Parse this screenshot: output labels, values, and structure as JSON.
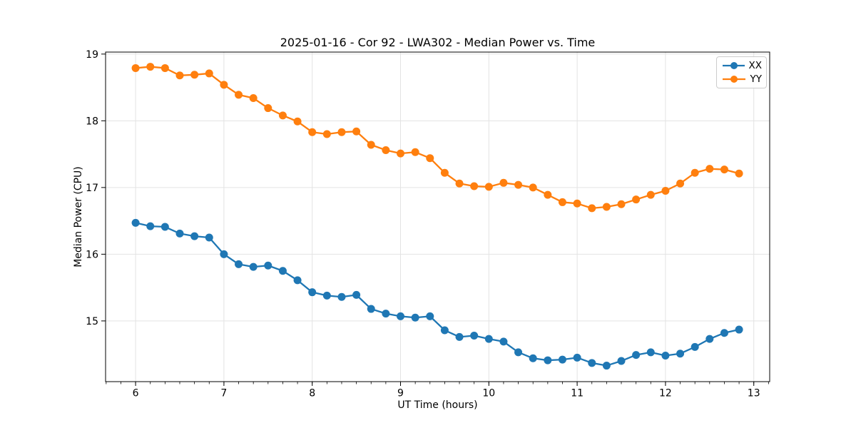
{
  "figure": {
    "title": "2025-01-16 - Cor 92 - LWA302 - Median Power vs. Time"
  },
  "chart_data": {
    "type": "line",
    "title": "2025-01-16 - Cor 92 - LWA302 - Median Power vs. Time",
    "xlabel": "UT Time (hours)",
    "ylabel": "Median Power (CPU)",
    "xlim": [
      5.66,
      13.18
    ],
    "ylim": [
      14.09,
      19.03
    ],
    "xticks": [
      6,
      7,
      8,
      9,
      10,
      11,
      12,
      13
    ],
    "yticks": [
      15,
      16,
      17,
      18,
      19
    ],
    "x_minor_step": 0.166667,
    "grid": true,
    "grid_color": "#e3e3e3",
    "spine_color": "#000000",
    "legend_position": "upper right",
    "x": [
      6.0,
      6.1667,
      6.3333,
      6.5,
      6.6667,
      6.8333,
      7.0,
      7.1667,
      7.3333,
      7.5,
      7.6667,
      7.8333,
      8.0,
      8.1667,
      8.3333,
      8.5,
      8.6667,
      8.8333,
      9.0,
      9.1667,
      9.3333,
      9.5,
      9.6667,
      9.8333,
      10.0,
      10.1667,
      10.3333,
      10.5,
      10.6667,
      10.8333,
      11.0,
      11.1667,
      11.3333,
      11.5,
      11.6667,
      11.8333,
      12.0,
      12.1667,
      12.3333,
      12.5,
      12.6667,
      12.8333
    ],
    "series": [
      {
        "name": "XX",
        "color": "#1f77b4",
        "values": [
          16.47,
          16.42,
          16.41,
          16.31,
          16.27,
          16.25,
          16.0,
          15.85,
          15.81,
          15.83,
          15.75,
          15.61,
          15.43,
          15.38,
          15.36,
          15.39,
          15.18,
          15.11,
          15.07,
          15.05,
          15.07,
          14.86,
          14.76,
          14.78,
          14.73,
          14.69,
          14.53,
          14.44,
          14.41,
          14.42,
          14.45,
          14.37,
          14.33,
          14.4,
          14.49,
          14.53,
          14.48,
          14.51,
          14.61,
          14.73,
          14.82,
          14.87
        ]
      },
      {
        "name": "YY",
        "color": "#ff7f0e",
        "values": [
          18.79,
          18.81,
          18.79,
          18.68,
          18.69,
          18.71,
          18.54,
          18.39,
          18.34,
          18.19,
          18.08,
          17.99,
          17.83,
          17.8,
          17.83,
          17.84,
          17.64,
          17.56,
          17.51,
          17.53,
          17.44,
          17.22,
          17.06,
          17.02,
          17.01,
          17.07,
          17.04,
          17.0,
          16.89,
          16.78,
          16.76,
          16.69,
          16.71,
          16.75,
          16.82,
          16.89,
          16.95,
          17.06,
          17.22,
          17.28,
          17.27,
          17.21
        ]
      }
    ]
  }
}
